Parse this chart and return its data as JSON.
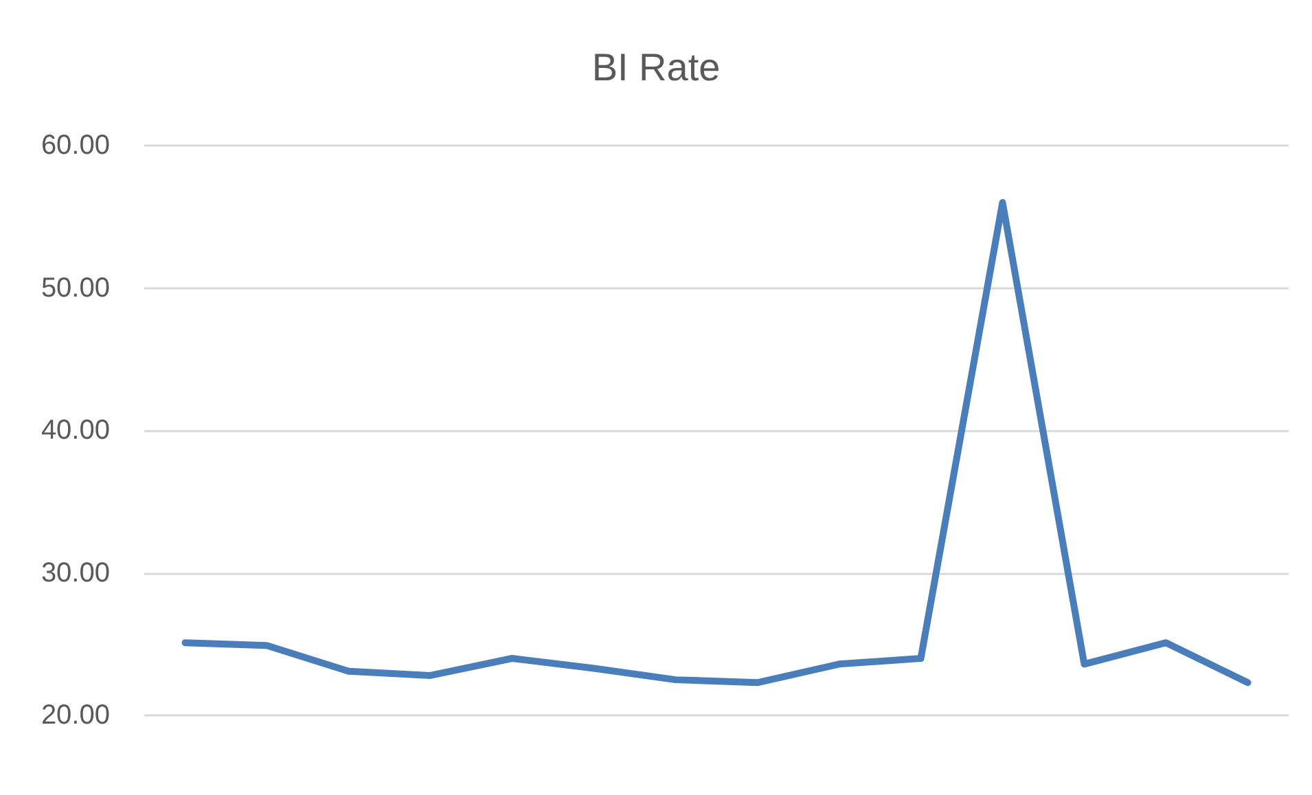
{
  "chart_data": {
    "type": "line",
    "title": "BI Rate",
    "categories": [
      null,
      null,
      null,
      null,
      null,
      null,
      null,
      null,
      null,
      null,
      null,
      null,
      null,
      null
    ],
    "series": [
      {
        "color": "#4a7ebb",
        "values": [
          25.1,
          24.9,
          23.1,
          22.8,
          24.0,
          23.3,
          22.5,
          22.3,
          23.6,
          24.0,
          56.0,
          23.6,
          25.1,
          22.3
        ]
      }
    ],
    "ylim": [
      20,
      60
    ],
    "yticks": [
      {
        "value": 20,
        "label": "20.00"
      },
      {
        "value": 30,
        "label": "30.00"
      },
      {
        "value": 40,
        "label": "40.00"
      },
      {
        "value": 50,
        "label": "50.00"
      },
      {
        "value": 60,
        "label": "60.00"
      }
    ],
    "grid": "y",
    "marker": "none",
    "line_style": "solid"
  }
}
